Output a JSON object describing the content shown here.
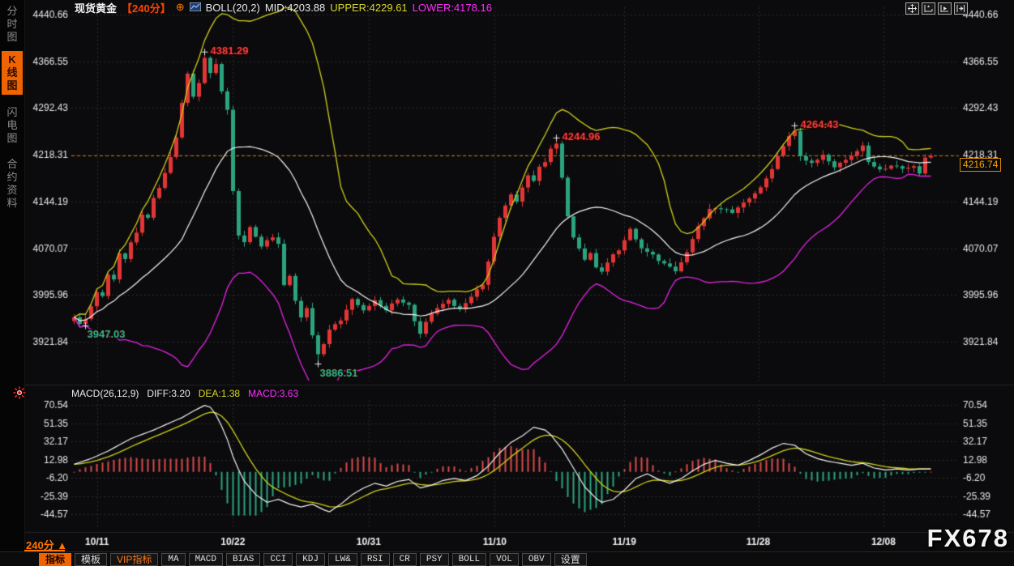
{
  "header": {
    "symbol": "现货黄金",
    "period": "【240分】",
    "plus_icon": "⊕",
    "indicator": "BOLL(20,2)",
    "mid": "MID:4203.88",
    "upper": "UPPER:4229.61",
    "lower": "LOWER:4178.16"
  },
  "sidebar": {
    "tabs": [
      {
        "label": "分时图",
        "active": false
      },
      {
        "label": "K线图",
        "active": true
      },
      {
        "label": "闪电图",
        "active": false
      },
      {
        "label": "合约资料",
        "active": false
      }
    ]
  },
  "macd_header": {
    "title": "MACD(26,12,9)",
    "diff": "DIFF:3.20",
    "dea": "DEA:1.38",
    "macd": "MACD:3.63"
  },
  "price_tag": {
    "value": "4216.74"
  },
  "footer": {
    "period_label": "240分 ▲",
    "buttons": [
      {
        "label": "指标",
        "style": "active"
      },
      {
        "label": "模板",
        "style": ""
      },
      {
        "label": "VIP指标",
        "style": "vip"
      },
      {
        "label": "MA",
        "style": "mono"
      },
      {
        "label": "MACD",
        "style": "mono"
      },
      {
        "label": "BIAS",
        "style": "mono"
      },
      {
        "label": "CCI",
        "style": "mono"
      },
      {
        "label": "KDJ",
        "style": "mono"
      },
      {
        "label": "LW&",
        "style": "mono"
      },
      {
        "label": "RSI",
        "style": "mono"
      },
      {
        "label": "CR",
        "style": "mono"
      },
      {
        "label": "PSY",
        "style": "mono"
      },
      {
        "label": "BOLL",
        "style": "mono"
      },
      {
        "label": "VOL",
        "style": "mono"
      },
      {
        "label": "OBV",
        "style": "mono"
      },
      {
        "label": "设置",
        "style": ""
      }
    ]
  },
  "watermark": "FX678",
  "chart_data": {
    "type": "candlestick",
    "title": "现货黄金 240分 K线图 BOLL(20,2) + MACD(26,12,9)",
    "y_ticks": [
      4440.66,
      4366.55,
      4292.43,
      4218.31,
      4144.19,
      4070.07,
      3995.96,
      3921.84
    ],
    "current_price": 4216.74,
    "boll": {
      "period": 20,
      "k": 2,
      "mid": 4203.88,
      "upper": 4229.61,
      "lower": 4178.16
    },
    "x_ticks": [
      {
        "label": "10/11",
        "pos": 0.029
      },
      {
        "label": "10/22",
        "pos": 0.182
      },
      {
        "label": "10/31",
        "pos": 0.335
      },
      {
        "label": "11/10",
        "pos": 0.477
      },
      {
        "label": "11/19",
        "pos": 0.623
      },
      {
        "label": "11/28",
        "pos": 0.774
      },
      {
        "label": "12/08",
        "pos": 0.915
      }
    ],
    "annotations": [
      {
        "text": "4381.29",
        "price": 4381.29,
        "index": 23,
        "kind": "high",
        "color": "#ff4040"
      },
      {
        "text": "4244.96",
        "price": 4244.96,
        "index": 85,
        "kind": "high",
        "color": "#ff4040"
      },
      {
        "text": "4264.43",
        "price": 4264.43,
        "index": 127,
        "kind": "high",
        "color": "#ff4040"
      },
      {
        "text": "3947.03",
        "price": 3947.03,
        "index": 2,
        "kind": "low",
        "color": "#2fbf8f"
      },
      {
        "text": "3886.51",
        "price": 3886.51,
        "index": 43,
        "kind": "low",
        "color": "#2fbf8f"
      }
    ],
    "candle_count": 152,
    "price_path": [
      [
        0,
        3963
      ],
      [
        1,
        3950
      ],
      [
        2,
        3958
      ],
      [
        3,
        3978
      ],
      [
        4,
        3998
      ],
      [
        5,
        3992
      ],
      [
        6,
        4030
      ],
      [
        7,
        4022
      ],
      [
        8,
        4062
      ],
      [
        9,
        4055
      ],
      [
        10,
        4078
      ],
      [
        11,
        4095
      ],
      [
        12,
        4125
      ],
      [
        13,
        4118
      ],
      [
        14,
        4150
      ],
      [
        15,
        4168
      ],
      [
        16,
        4190
      ],
      [
        17,
        4215
      ],
      [
        18,
        4245
      ],
      [
        19,
        4300
      ],
      [
        20,
        4345
      ],
      [
        21,
        4310
      ],
      [
        22,
        4332
      ],
      [
        23,
        4372
      ],
      [
        24,
        4348
      ],
      [
        25,
        4362
      ],
      [
        26,
        4320
      ],
      [
        27,
        4292
      ],
      [
        28,
        4160
      ],
      [
        29,
        4092
      ],
      [
        30,
        4078
      ],
      [
        31,
        4105
      ],
      [
        32,
        4088
      ],
      [
        33,
        4072
      ],
      [
        34,
        4082
      ],
      [
        35,
        4086
      ],
      [
        36,
        4076
      ],
      [
        37,
        4012
      ],
      [
        38,
        4024
      ],
      [
        39,
        3986
      ],
      [
        40,
        3962
      ],
      [
        41,
        3976
      ],
      [
        42,
        3932
      ],
      [
        43,
        3902
      ],
      [
        44,
        3918
      ],
      [
        45,
        3942
      ],
      [
        47,
        3956
      ],
      [
        49,
        3992
      ],
      [
        51,
        3972
      ],
      [
        53,
        3988
      ],
      [
        55,
        3974
      ],
      [
        57,
        3990
      ],
      [
        59,
        3978
      ],
      [
        61,
        3932
      ],
      [
        62,
        3952
      ],
      [
        64,
        3976
      ],
      [
        66,
        3988
      ],
      [
        68,
        3974
      ],
      [
        70,
        3992
      ],
      [
        72,
        4014
      ],
      [
        74,
        4088
      ],
      [
        75,
        4120
      ],
      [
        76,
        4136
      ],
      [
        77,
        4156
      ],
      [
        78,
        4142
      ],
      [
        79,
        4166
      ],
      [
        80,
        4186
      ],
      [
        81,
        4176
      ],
      [
        82,
        4198
      ],
      [
        83,
        4206
      ],
      [
        84,
        4228
      ],
      [
        85,
        4236
      ],
      [
        86,
        4182
      ],
      [
        87,
        4122
      ],
      [
        88,
        4086
      ],
      [
        89,
        4068
      ],
      [
        90,
        4052
      ],
      [
        91,
        4062
      ],
      [
        92,
        4042
      ],
      [
        93,
        4032
      ],
      [
        94,
        4048
      ],
      [
        95,
        4058
      ],
      [
        96,
        4066
      ],
      [
        98,
        4100
      ],
      [
        100,
        4072
      ],
      [
        102,
        4058
      ],
      [
        104,
        4046
      ],
      [
        106,
        4036
      ],
      [
        108,
        4062
      ],
      [
        110,
        4106
      ],
      [
        112,
        4130
      ],
      [
        114,
        4132
      ],
      [
        116,
        4128
      ],
      [
        118,
        4140
      ],
      [
        120,
        4156
      ],
      [
        122,
        4180
      ],
      [
        124,
        4215
      ],
      [
        126,
        4248
      ],
      [
        127,
        4256
      ],
      [
        128,
        4216
      ],
      [
        130,
        4206
      ],
      [
        132,
        4216
      ],
      [
        134,
        4200
      ],
      [
        136,
        4210
      ],
      [
        138,
        4226
      ],
      [
        139,
        4232
      ],
      [
        140,
        4206
      ],
      [
        142,
        4196
      ],
      [
        144,
        4200
      ],
      [
        146,
        4198
      ],
      [
        148,
        4200
      ],
      [
        149,
        4190
      ],
      [
        150,
        4212
      ],
      [
        151,
        4216.74
      ]
    ],
    "macd": {
      "y_ticks": [
        70.54,
        51.35,
        32.17,
        12.98,
        -6.2,
        -25.39,
        -44.57
      ],
      "diff_path": [
        [
          0,
          8
        ],
        [
          3,
          14
        ],
        [
          6,
          22
        ],
        [
          10,
          35
        ],
        [
          14,
          44
        ],
        [
          17,
          52
        ],
        [
          19,
          57
        ],
        [
          21,
          64
        ],
        [
          23,
          70
        ],
        [
          24,
          68
        ],
        [
          25,
          60
        ],
        [
          26,
          48
        ],
        [
          27,
          34
        ],
        [
          28,
          16
        ],
        [
          29,
          2
        ],
        [
          30,
          -10
        ],
        [
          32,
          -24
        ],
        [
          34,
          -32
        ],
        [
          36,
          -29
        ],
        [
          38,
          -34
        ],
        [
          40,
          -37
        ],
        [
          42,
          -34
        ],
        [
          44,
          -40
        ],
        [
          45,
          -42
        ],
        [
          47,
          -34
        ],
        [
          49,
          -24
        ],
        [
          51,
          -17
        ],
        [
          53,
          -12
        ],
        [
          55,
          -15
        ],
        [
          57,
          -10
        ],
        [
          59,
          -8
        ],
        [
          61,
          -17
        ],
        [
          63,
          -14
        ],
        [
          65,
          -9
        ],
        [
          67,
          -7
        ],
        [
          69,
          -9
        ],
        [
          71,
          -4
        ],
        [
          73,
          6
        ],
        [
          75,
          20
        ],
        [
          77,
          31
        ],
        [
          79,
          38
        ],
        [
          81,
          47
        ],
        [
          83,
          44
        ],
        [
          84,
          39
        ],
        [
          86,
          24
        ],
        [
          88,
          4
        ],
        [
          90,
          -16
        ],
        [
          92,
          -28
        ],
        [
          93,
          -32
        ],
        [
          95,
          -29
        ],
        [
          97,
          -19
        ],
        [
          99,
          -7
        ],
        [
          101,
          -2
        ],
        [
          103,
          -8
        ],
        [
          105,
          -12
        ],
        [
          107,
          -7
        ],
        [
          109,
          1
        ],
        [
          111,
          8
        ],
        [
          113,
          12
        ],
        [
          115,
          9
        ],
        [
          117,
          7
        ],
        [
          119,
          12
        ],
        [
          121,
          18
        ],
        [
          123,
          25
        ],
        [
          125,
          30
        ],
        [
          127,
          28
        ],
        [
          129,
          19
        ],
        [
          131,
          14
        ],
        [
          133,
          11
        ],
        [
          135,
          9
        ],
        [
          137,
          7
        ],
        [
          139,
          9
        ],
        [
          141,
          4
        ],
        [
          143,
          2
        ],
        [
          145,
          3
        ],
        [
          147,
          2
        ],
        [
          149,
          3
        ],
        [
          151,
          3.2
        ]
      ]
    },
    "colors": {
      "up": "#e23636",
      "down": "#2ba47e",
      "boll_upper": "#cfcf1a",
      "boll_mid": "#f4f4f4",
      "boll_lower": "#e522e5",
      "grid": "#2c2c2c",
      "axis_text": "#e6e6e6",
      "price_line": "#c87800",
      "hist_up": "#d94a4a",
      "hist_down": "#2ba47e",
      "diff_line": "#f4f4f4",
      "dea_line": "#cfcf1a",
      "accent": "#ef6400"
    }
  }
}
